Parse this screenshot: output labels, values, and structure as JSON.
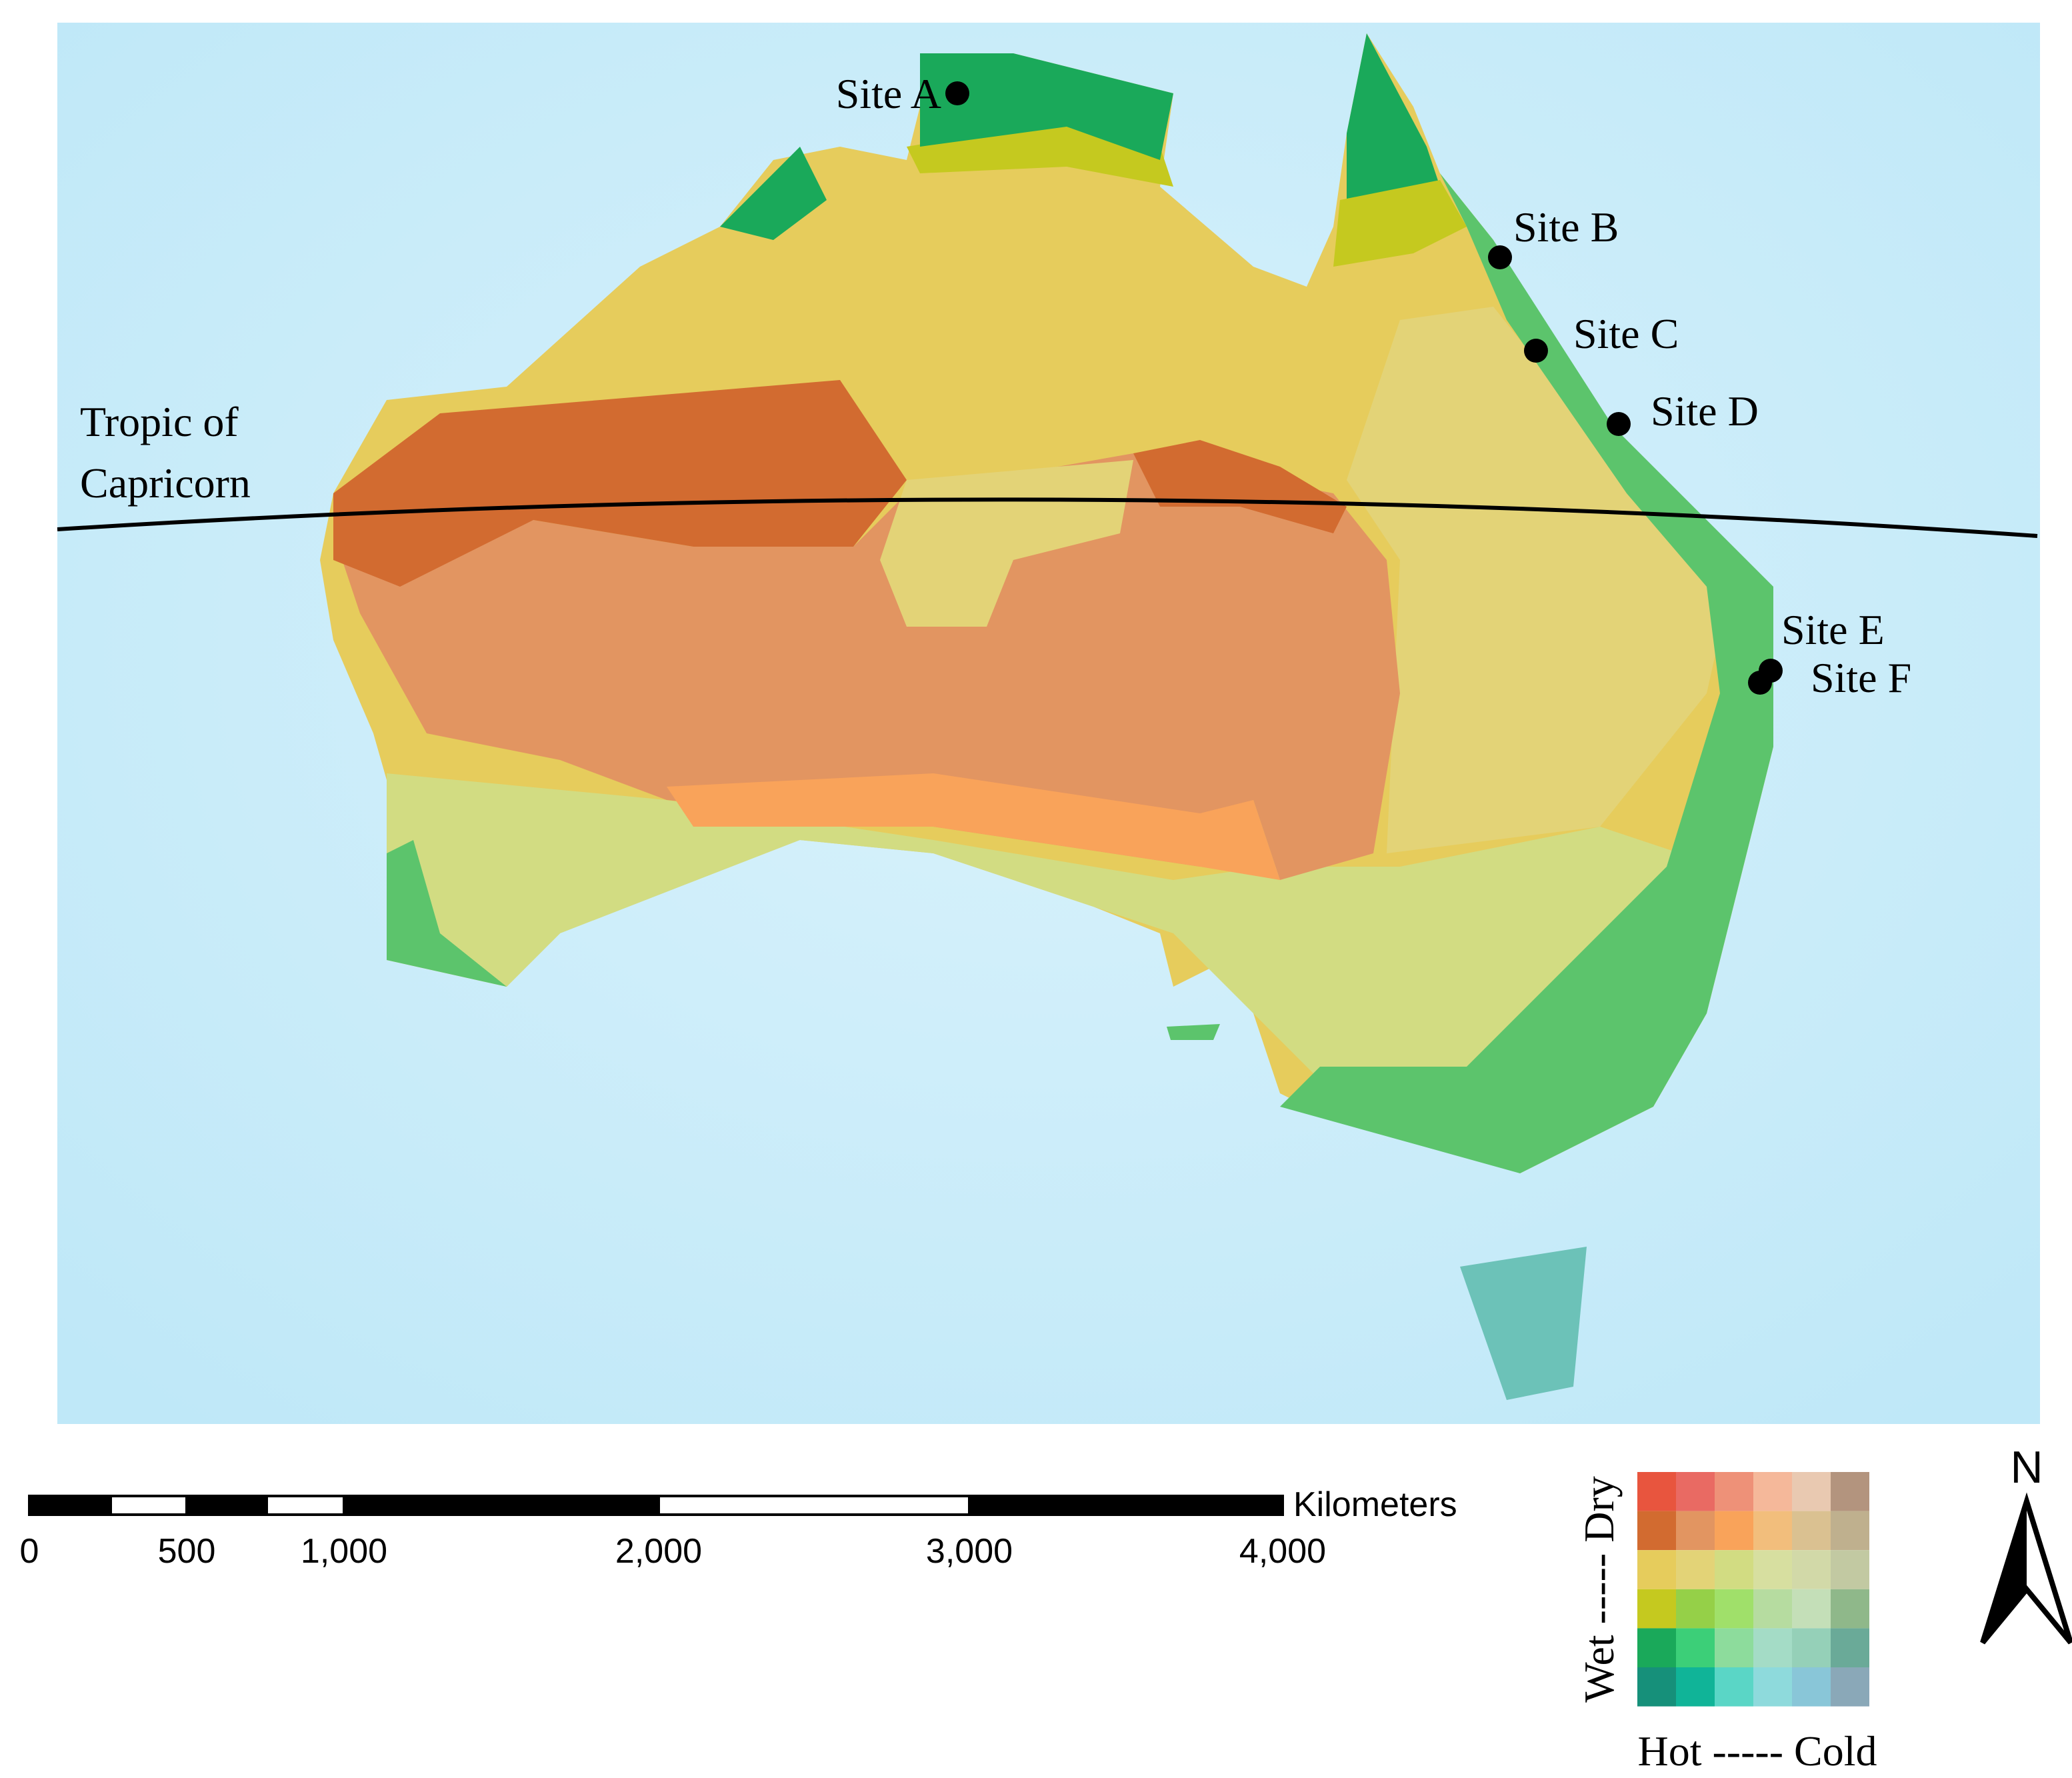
{
  "map": {
    "sites": [
      "Site A",
      "Site B",
      "Site C",
      "Site D",
      "Site E",
      "Site F"
    ],
    "tropic_label": [
      "Tropic of",
      "Capricorn"
    ],
    "scale_bar": {
      "labels": [
        "0",
        "500",
        "1,000",
        "2,000",
        "3,000",
        "4,000"
      ],
      "unit": "Kilometers"
    },
    "legend": {
      "y_axis": "Wet ----- Dry",
      "x_axis": "Hot ----- Cold"
    },
    "north": "N"
  }
}
